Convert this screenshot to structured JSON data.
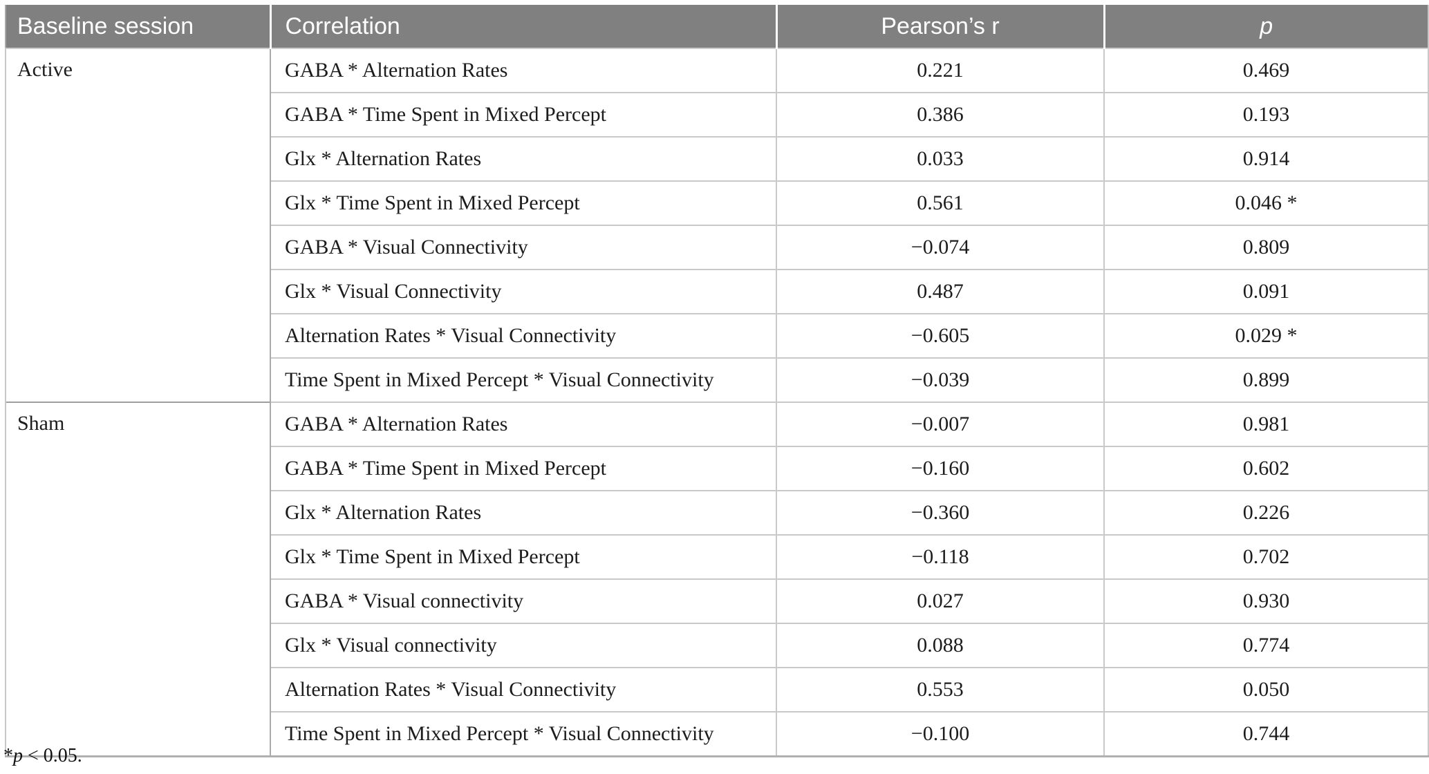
{
  "table": {
    "columns": [
      "Baseline session",
      "Correlation",
      "Pearson’s r",
      "p"
    ],
    "groups": [
      {
        "session": "Active",
        "rows": [
          {
            "correlation": "GABA * Alternation Rates",
            "r": "0.221",
            "p": "0.469"
          },
          {
            "correlation": "GABA * Time Spent in Mixed Percept",
            "r": "0.386",
            "p": "0.193"
          },
          {
            "correlation": "Glx * Alternation Rates",
            "r": "0.033",
            "p": "0.914"
          },
          {
            "correlation": "Glx * Time Spent in Mixed Percept",
            "r": "0.561",
            "p": "0.046 *"
          },
          {
            "correlation": "GABA * Visual Connectivity",
            "r": "−0.074",
            "p": "0.809"
          },
          {
            "correlation": "Glx * Visual Connectivity",
            "r": "0.487",
            "p": "0.091"
          },
          {
            "correlation": "Alternation Rates * Visual Connectivity",
            "r": "−0.605",
            "p": "0.029 *"
          },
          {
            "correlation": "Time Spent in Mixed Percept * Visual Connectivity",
            "r": "−0.039",
            "p": "0.899"
          }
        ]
      },
      {
        "session": "Sham",
        "rows": [
          {
            "correlation": "GABA * Alternation Rates",
            "r": "−0.007",
            "p": "0.981"
          },
          {
            "correlation": "GABA * Time Spent in Mixed Percept",
            "r": "−0.160",
            "p": "0.602"
          },
          {
            "correlation": "Glx * Alternation Rates",
            "r": "−0.360",
            "p": "0.226"
          },
          {
            "correlation": "Glx * Time Spent in Mixed Percept",
            "r": "−0.118",
            "p": "0.702"
          },
          {
            "correlation": "GABA * Visual connectivity",
            "r": "0.027",
            "p": "0.930"
          },
          {
            "correlation": "Glx * Visual connectivity",
            "r": "0.088",
            "p": "0.774"
          },
          {
            "correlation": "Alternation Rates * Visual Connectivity",
            "r": "0.553",
            "p": "0.050"
          },
          {
            "correlation": "Time Spent in Mixed Percept * Visual Connectivity",
            "r": "−0.100",
            "p": "0.744"
          }
        ]
      }
    ],
    "footnote": {
      "marker": "*",
      "variable": "p",
      "rest": " < 0.05."
    }
  },
  "colors": {
    "header_background": "#808080",
    "header_text": "#ffffff",
    "body_text": "#1c1c1c",
    "row_line": "#c9c9c9",
    "group_line": "#9e9e9e"
  }
}
